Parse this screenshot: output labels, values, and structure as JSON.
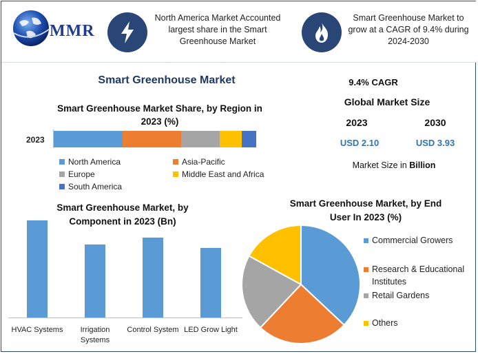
{
  "logo": {
    "text": "MMR"
  },
  "header": {
    "box1_text": "North America Market Accounted largest share in the Smart Greenhouse Market",
    "box2_text": "Smart Greenhouse Market to grow at a CAGR of 9.4% during 2024-2030",
    "icon1": "lightning-icon",
    "icon2": "flame-icon"
  },
  "main_title": "Smart Greenhouse Market",
  "stats": {
    "cagr": "9.4% CAGR",
    "size_title": "Global Market Size",
    "year1": "2023",
    "year2": "2030",
    "value1": "USD 2.10",
    "value2": "USD 3.93",
    "unit_prefix": "Market Size in ",
    "unit_bold": "Billion"
  },
  "colors": {
    "blue": "#5b9bd5",
    "orange": "#ed7d31",
    "gray": "#a5a5a5",
    "yellow": "#ffc000",
    "darkblue": "#4472c4",
    "navy": "#2a4677",
    "value_blue": "#2e75b6"
  },
  "chart_data": [
    {
      "type": "bar",
      "orientation": "horizontal-stacked",
      "title": "Smart Greenhouse Market Share, by Region in 2023 (%)",
      "categories": [
        "2023"
      ],
      "series": [
        {
          "name": "North America",
          "values": [
            34
          ],
          "color": "#5b9bd5"
        },
        {
          "name": "Asia-Pacific",
          "values": [
            29
          ],
          "color": "#ed7d31"
        },
        {
          "name": "Europe",
          "values": [
            19
          ],
          "color": "#a5a5a5"
        },
        {
          "name": "Middle East and Africa",
          "values": [
            11
          ],
          "color": "#ffc000"
        },
        {
          "name": "South America",
          "values": [
            7
          ],
          "color": "#4472c4"
        }
      ],
      "legend_position": "bottom"
    },
    {
      "type": "bar",
      "title": "Smart Greenhouse Market, by Component in 2023 (Bn)",
      "categories": [
        "HVAC Systems",
        "Irrigation Systems",
        "Control System",
        "LED Grow Light"
      ],
      "values": [
        0.68,
        0.51,
        0.56,
        0.49
      ],
      "ylim": [
        0,
        0.7
      ]
    },
    {
      "type": "pie",
      "title": "Smart Greenhouse Market, by End User In 2023 (%)",
      "labels": [
        "Commercial Growers",
        "Research & Educational Institutes",
        "Retail Gardens",
        "Others"
      ],
      "values": [
        37,
        25,
        21,
        17
      ],
      "colors": [
        "#5b9bd5",
        "#ed7d31",
        "#a5a5a5",
        "#ffc000"
      ],
      "legend_position": "right"
    }
  ]
}
